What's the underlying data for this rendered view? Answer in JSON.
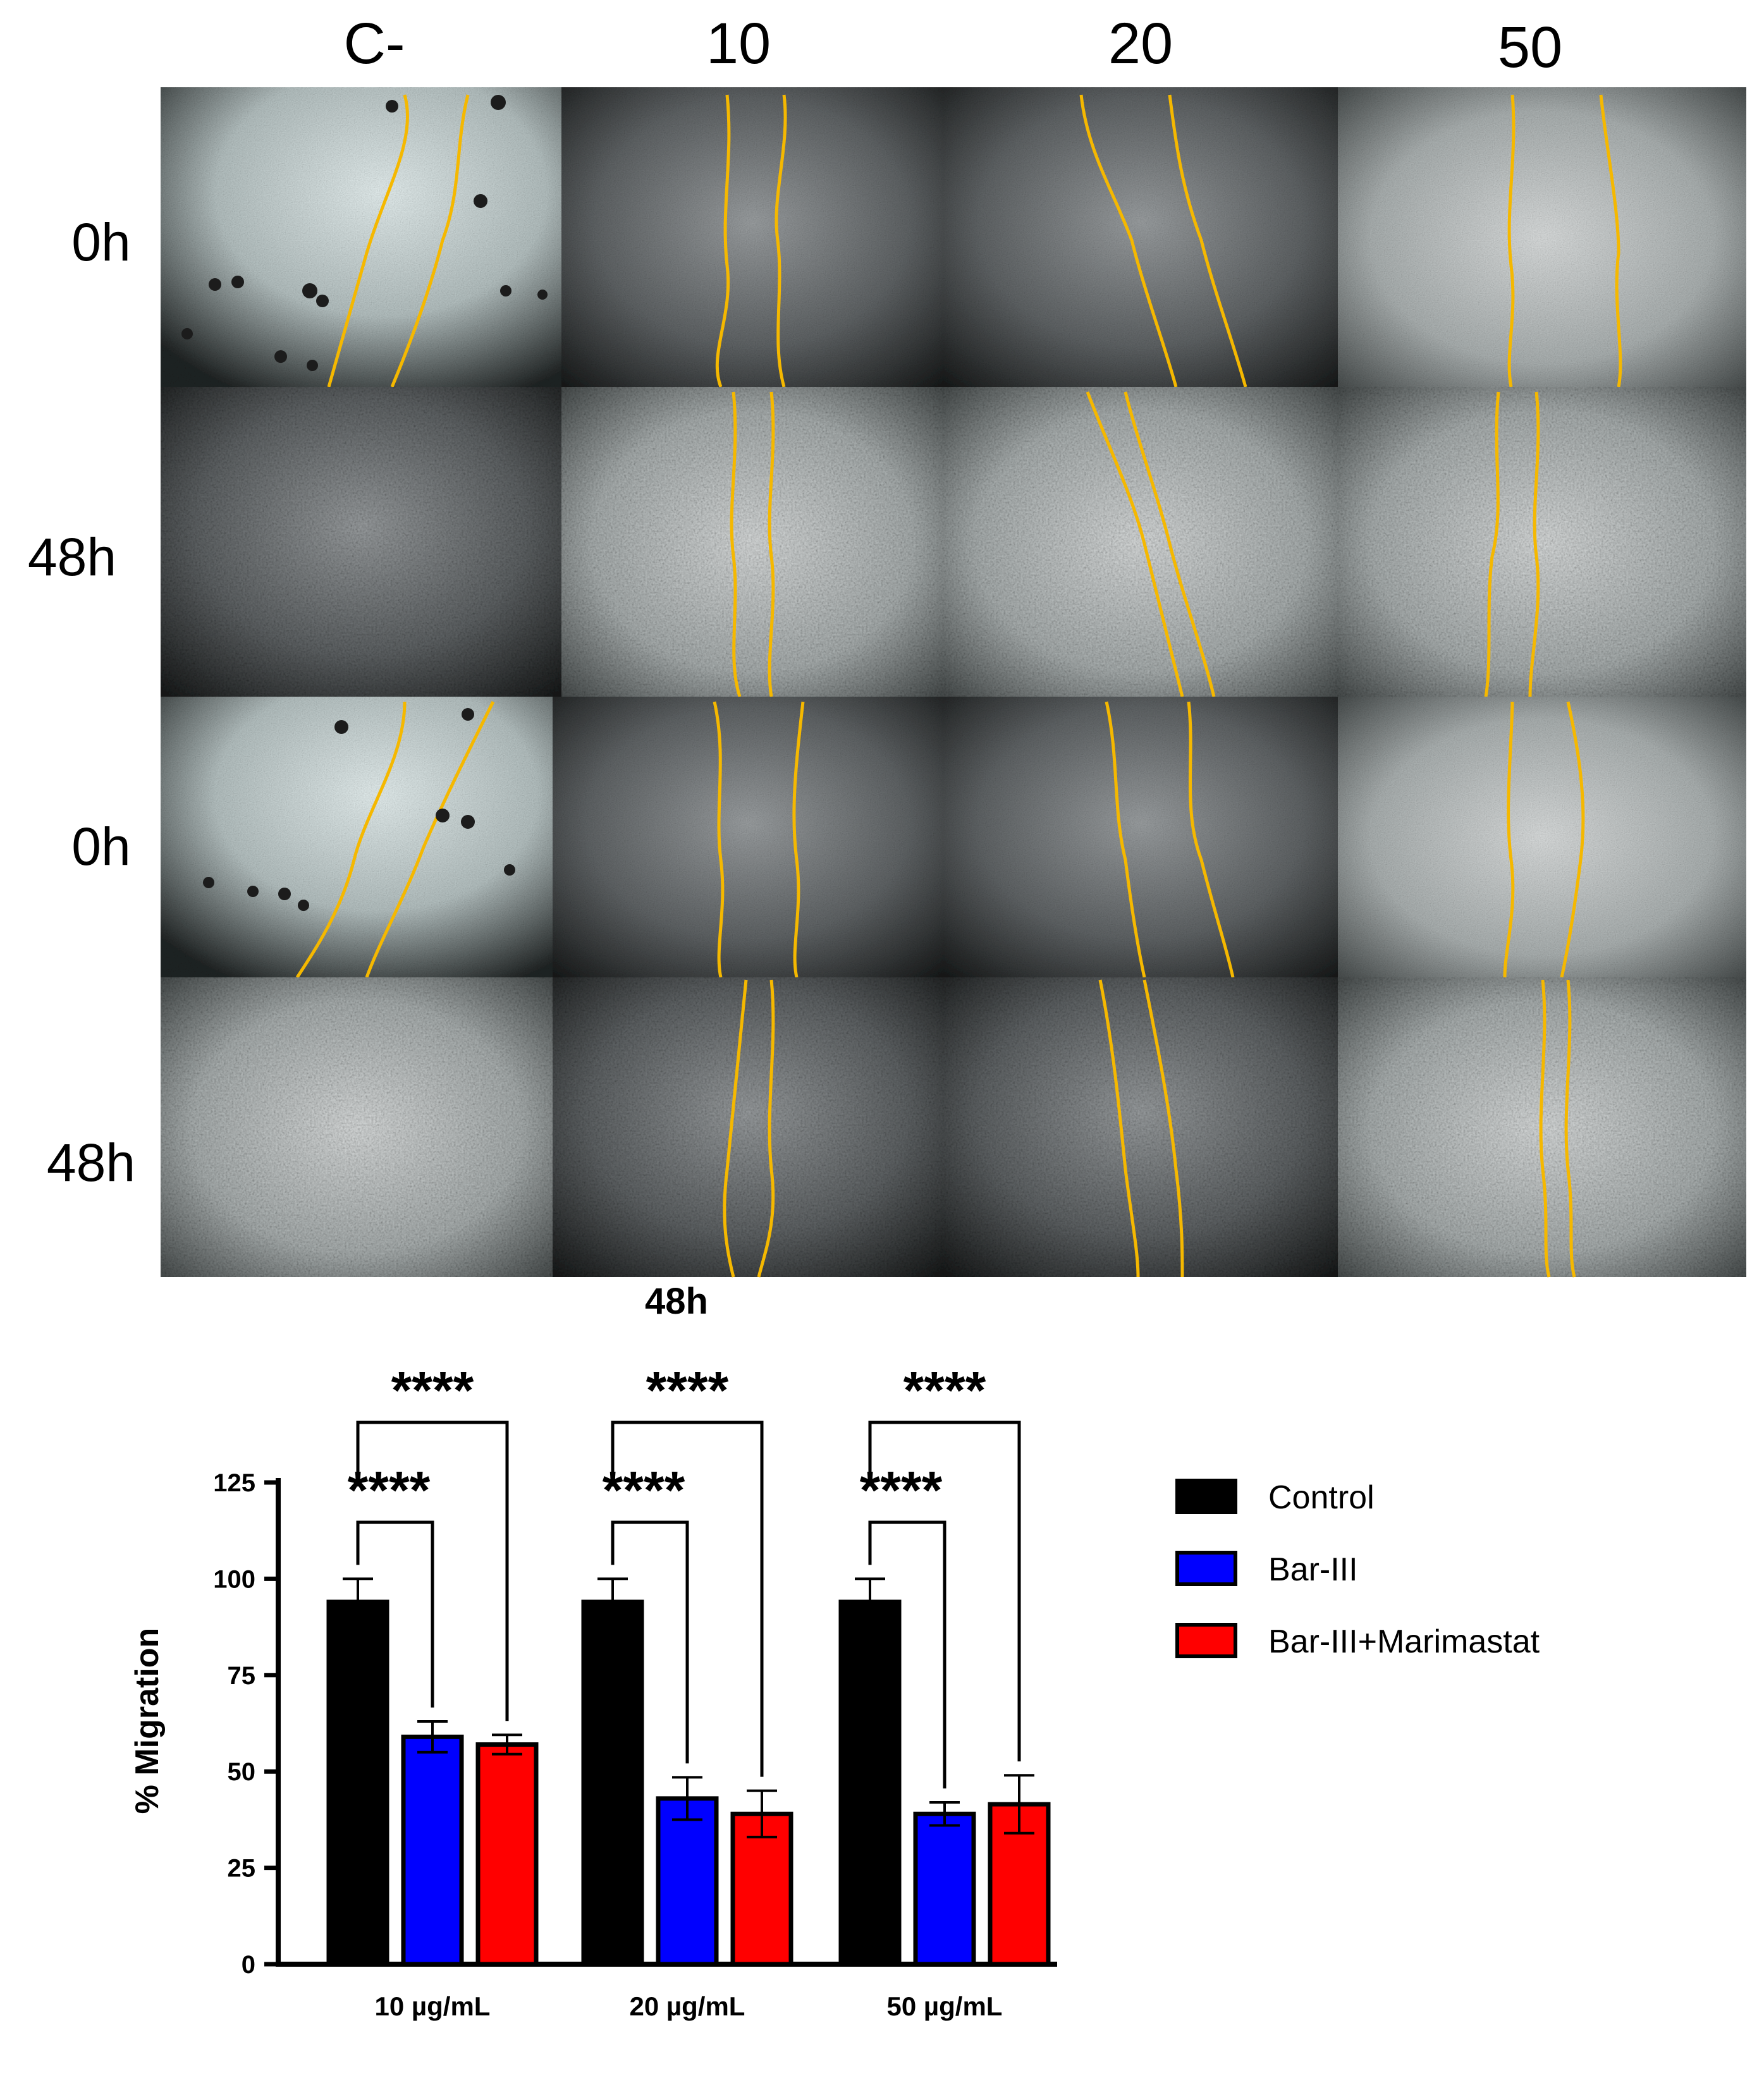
{
  "micrographs": {
    "columns": [
      "C-",
      "10",
      "20",
      "50"
    ],
    "rows": [
      "0h",
      "48h",
      "0h",
      "48h"
    ],
    "footer_label": "48h",
    "wound_outline_color": "#f5b800"
  },
  "chart_data": {
    "type": "bar",
    "categories": [
      "10 µg/mL",
      "20 µg/mL",
      "50 µg/mL"
    ],
    "ylabel": "% Migration",
    "xlabel": "",
    "ylim": [
      0,
      125
    ],
    "yticks": [
      0,
      25,
      50,
      75,
      100,
      125
    ],
    "series": [
      {
        "name": "Control",
        "color": "#000000",
        "values": [
          94,
          94,
          94
        ],
        "errors": [
          6,
          6,
          6
        ]
      },
      {
        "name": "Bar-III",
        "color": "#0000ff",
        "values": [
          59,
          43,
          39
        ],
        "errors": [
          4,
          5.5,
          3
        ]
      },
      {
        "name": "Bar-III+Marimastat",
        "color": "#ff0000",
        "values": [
          57,
          39,
          41.5
        ],
        "errors": [
          2.5,
          6,
          7.5
        ]
      }
    ],
    "significance": [
      {
        "category": 0,
        "from": "Control",
        "to": "Bar-III",
        "label": "****"
      },
      {
        "category": 0,
        "from": "Control",
        "to": "Bar-III+Marimastat",
        "label": "****"
      },
      {
        "category": 1,
        "from": "Control",
        "to": "Bar-III",
        "label": "****"
      },
      {
        "category": 1,
        "from": "Control",
        "to": "Bar-III+Marimastat",
        "label": "****"
      },
      {
        "category": 2,
        "from": "Control",
        "to": "Bar-III",
        "label": "****"
      },
      {
        "category": 2,
        "from": "Control",
        "to": "Bar-III+Marimastat",
        "label": "****"
      }
    ],
    "legend": [
      "Control",
      "Bar-III",
      "Bar-III+Marimastat"
    ],
    "legend_position": "right",
    "grid": false
  }
}
